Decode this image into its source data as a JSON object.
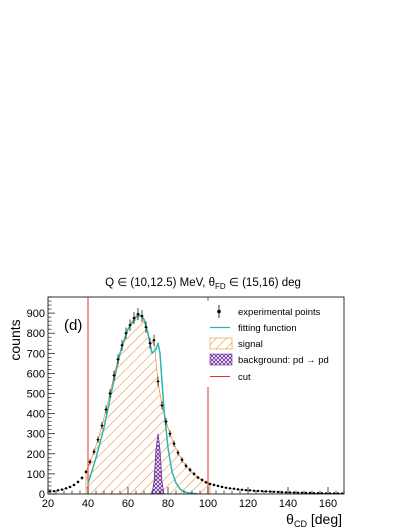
{
  "chart_data": {
    "type": "histogram",
    "title_parts": {
      "pre": "Q ∈ (10,12.5) MeV, θ",
      "sub": "FD",
      "post": " ∈ (15,16) deg"
    },
    "panel_label": "(d)",
    "ylabel": "counts",
    "xlabel_parts": {
      "sym": "θ",
      "sub": "CD",
      "post": " [deg]"
    },
    "xlim": [
      20,
      168
    ],
    "ylim": [
      0,
      980
    ],
    "xticks": [
      20,
      40,
      60,
      80,
      100,
      120,
      140,
      160
    ],
    "yticks": [
      0,
      100,
      200,
      300,
      400,
      500,
      600,
      700,
      800,
      900
    ],
    "legend": [
      {
        "key": "exp",
        "label": "experimental points"
      },
      {
        "key": "fit",
        "label": "fitting function"
      },
      {
        "key": "sig",
        "label": "signal"
      },
      {
        "key": "bkg",
        "label": "background: pd → pd"
      },
      {
        "key": "cut",
        "label": "cut"
      }
    ],
    "colors": {
      "points": "#000000",
      "fit": "#2ab7b0",
      "signal": "#f08a2c",
      "background": "#6a2fa0",
      "cut": "#e8302c"
    },
    "cuts": [
      40,
      100
    ],
    "signal_region": [
      40,
      100
    ],
    "experimental": {
      "x": [
        21,
        23,
        25,
        27,
        29,
        31,
        33,
        35,
        37,
        39,
        41,
        43,
        45,
        47,
        49,
        51,
        53,
        55,
        57,
        59,
        61,
        63,
        65,
        67,
        69,
        71,
        73,
        75,
        77,
        79,
        81,
        83,
        85,
        87,
        89,
        91,
        93,
        95,
        97,
        99,
        101,
        103,
        105,
        107,
        109,
        111,
        113,
        115,
        117,
        119,
        121,
        123,
        125,
        127,
        129,
        131,
        133,
        135,
        137,
        139,
        141,
        143,
        145,
        147,
        149,
        151,
        153,
        155,
        157,
        159,
        161,
        163,
        165,
        167
      ],
      "y": [
        12,
        14,
        18,
        22,
        28,
        35,
        45,
        60,
        80,
        110,
        160,
        210,
        270,
        340,
        420,
        500,
        590,
        670,
        740,
        800,
        840,
        875,
        895,
        885,
        830,
        750,
        765,
        560,
        440,
        360,
        300,
        250,
        205,
        170,
        140,
        120,
        100,
        82,
        70,
        58,
        50,
        45,
        40,
        35,
        31,
        28,
        26,
        23,
        21,
        19,
        18,
        16,
        15,
        14,
        13,
        12,
        11,
        10,
        9,
        8,
        8,
        7,
        6,
        6,
        5,
        5,
        4,
        4,
        4,
        3,
        3,
        3,
        3,
        2
      ],
      "err": [
        4,
        4,
        4,
        5,
        5,
        6,
        7,
        8,
        9,
        10,
        13,
        15,
        16,
        18,
        20,
        22,
        24,
        26,
        27,
        28,
        29,
        30,
        30,
        30,
        29,
        27,
        28,
        24,
        21,
        19,
        17,
        16,
        14,
        13,
        12,
        11,
        10,
        9,
        8,
        8,
        7,
        7,
        6,
        6,
        6,
        5,
        5,
        5,
        5,
        4,
        4,
        4,
        4,
        4,
        4,
        3,
        3,
        3,
        3,
        3,
        3,
        3,
        2,
        2,
        2,
        2,
        2,
        2,
        2,
        2,
        2,
        2,
        2,
        2
      ]
    },
    "fit": {
      "x": [
        40,
        44,
        48,
        52,
        56,
        60,
        64,
        66,
        68,
        70,
        72,
        74,
        75,
        76,
        78,
        80,
        82,
        84,
        86,
        88,
        90,
        92,
        95
      ],
      "y": [
        50,
        180,
        330,
        520,
        700,
        820,
        880,
        890,
        870,
        800,
        700,
        720,
        750,
        700,
        420,
        230,
        110,
        55,
        25,
        12,
        6,
        3,
        1
      ]
    },
    "background": {
      "x": [
        72,
        73,
        74,
        75,
        76,
        77,
        78
      ],
      "y": [
        0,
        60,
        220,
        300,
        220,
        60,
        0
      ]
    }
  }
}
